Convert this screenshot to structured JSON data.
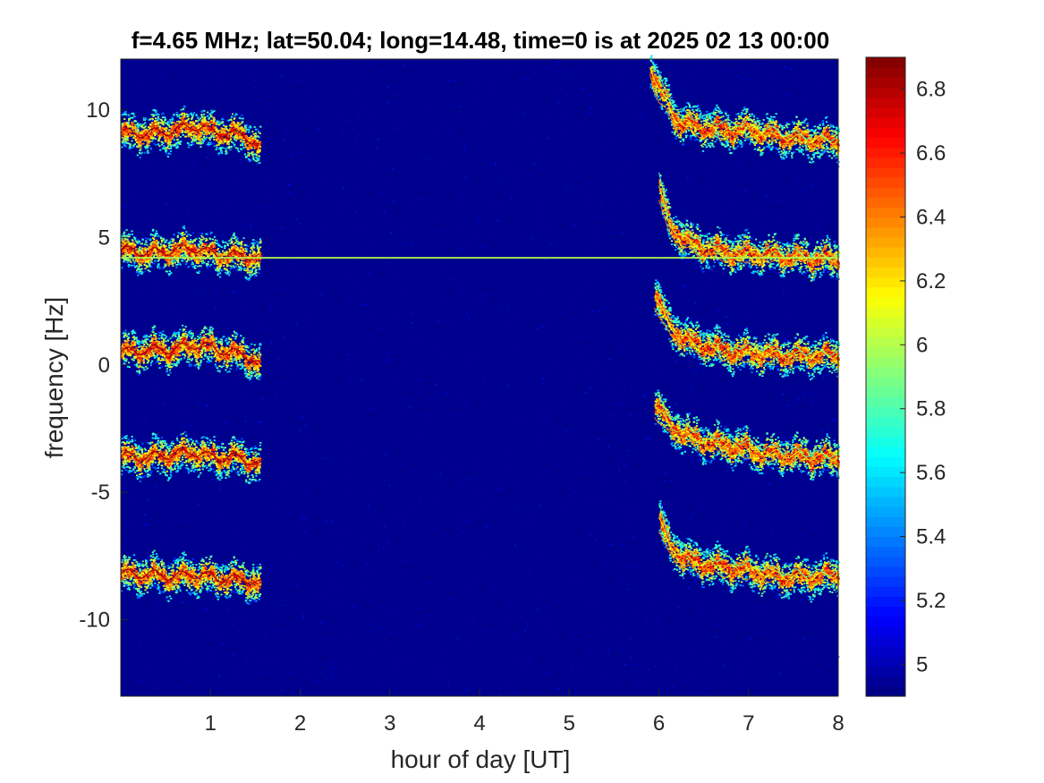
{
  "chart_data": {
    "type": "heatmap",
    "title": "f=4.65 MHz;  lat=50.04; long=14.48, time=0 is at 2025 02 13 00:00",
    "xlabel": "hour of day [UT]",
    "ylabel": "frequency [Hz]",
    "xlim": [
      0,
      8
    ],
    "ylim": [
      -13,
      12
    ],
    "x_ticks": [
      "1",
      "2",
      "3",
      "4",
      "5",
      "6",
      "7",
      "8"
    ],
    "y_ticks": [
      "10",
      "5",
      "0",
      "-5",
      "-10"
    ],
    "colorbar": {
      "colormap": "jet",
      "clim": [
        4.9,
        6.9
      ],
      "ticks": [
        "5",
        "5.2",
        "5.4",
        "5.6",
        "5.8",
        "6",
        "6.2",
        "6.4",
        "6.6",
        "6.8"
      ]
    },
    "background_value": 4.95,
    "constant_line": {
      "y": 4.2,
      "x_range": [
        0,
        8
      ],
      "value": 6.0
    },
    "traces": [
      {
        "segment": "night",
        "x": [
          0.0,
          0.3,
          0.6,
          0.8,
          1.0,
          1.2,
          1.4,
          1.55
        ],
        "y": [
          9.1,
          9.1,
          9.2,
          9.4,
          9.2,
          9.1,
          9.0,
          8.5
        ]
      },
      {
        "segment": "night",
        "x": [
          0.0,
          0.3,
          0.6,
          0.8,
          1.0,
          1.2,
          1.4,
          1.55
        ],
        "y": [
          4.5,
          4.4,
          4.5,
          4.6,
          4.4,
          4.3,
          4.3,
          4.2
        ]
      },
      {
        "segment": "night",
        "x": [
          0.0,
          0.3,
          0.6,
          0.8,
          1.0,
          1.2,
          1.4,
          1.55
        ],
        "y": [
          0.5,
          0.6,
          0.6,
          0.8,
          0.7,
          0.5,
          0.4,
          0.0
        ]
      },
      {
        "segment": "night",
        "x": [
          0.0,
          0.3,
          0.6,
          0.8,
          1.0,
          1.2,
          1.4,
          1.55
        ],
        "y": [
          -3.6,
          -3.6,
          -3.5,
          -3.4,
          -3.6,
          -3.6,
          -3.7,
          -3.9
        ]
      },
      {
        "segment": "night",
        "x": [
          0.0,
          0.3,
          0.6,
          0.8,
          1.0,
          1.2,
          1.4,
          1.55
        ],
        "y": [
          -8.2,
          -8.2,
          -8.3,
          -8.2,
          -8.3,
          -8.4,
          -8.4,
          -8.6
        ]
      },
      {
        "segment": "day",
        "x": [
          5.9,
          6.0,
          6.2,
          6.4,
          6.6,
          6.8,
          7.0,
          7.3,
          7.6,
          8.0
        ],
        "y": [
          11.8,
          10.8,
          9.6,
          9.4,
          9.3,
          9.2,
          9.3,
          9.0,
          8.9,
          8.8
        ]
      },
      {
        "segment": "day",
        "x": [
          6.0,
          6.1,
          6.3,
          6.5,
          6.7,
          6.9,
          7.1,
          7.4,
          7.7,
          8.0
        ],
        "y": [
          7.0,
          5.6,
          4.9,
          4.6,
          4.5,
          4.4,
          4.4,
          4.3,
          4.2,
          4.2
        ]
      },
      {
        "segment": "day",
        "x": [
          5.95,
          6.1,
          6.3,
          6.5,
          6.7,
          6.9,
          7.1,
          7.4,
          7.7,
          8.0
        ],
        "y": [
          2.8,
          1.6,
          1.0,
          0.8,
          0.6,
          0.5,
          0.5,
          0.4,
          0.4,
          0.4
        ]
      },
      {
        "segment": "day",
        "x": [
          5.95,
          6.1,
          6.3,
          6.5,
          6.7,
          6.9,
          7.1,
          7.4,
          7.7,
          8.0
        ],
        "y": [
          -1.5,
          -2.3,
          -2.7,
          -3.0,
          -3.1,
          -3.2,
          -3.4,
          -3.5,
          -3.6,
          -3.6
        ]
      },
      {
        "segment": "day",
        "x": [
          6.0,
          6.1,
          6.3,
          6.5,
          6.7,
          6.9,
          7.1,
          7.4,
          7.7,
          8.0
        ],
        "y": [
          -6.0,
          -7.0,
          -7.6,
          -7.8,
          -7.9,
          -8.0,
          -8.1,
          -8.3,
          -8.3,
          -8.2
        ]
      }
    ]
  }
}
